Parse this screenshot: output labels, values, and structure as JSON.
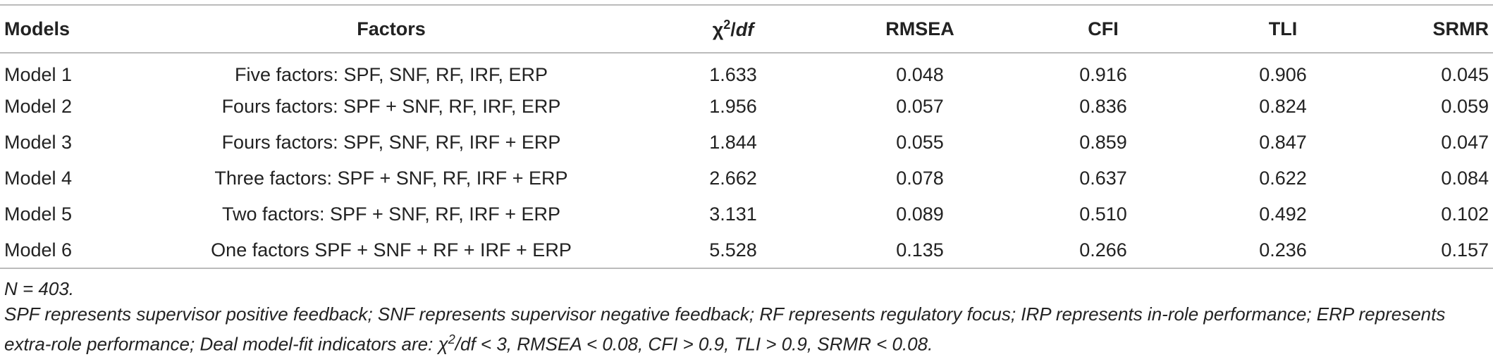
{
  "table": {
    "header": [
      "Models",
      "Factors",
      [
        "χ",
        "2",
        "/",
        "df"
      ],
      "RMSEA",
      "CFI",
      "TLI",
      "SRMR"
    ],
    "rows": [
      [
        "Model 1",
        "Five factors: SPF, SNF, RF, IRF, ERP",
        "1.633",
        "0.048",
        "0.916",
        "0.906",
        "0.045"
      ],
      [
        "Model 2",
        "Fours factors: SPF + SNF, RF, IRF, ERP",
        "1.956",
        "0.057",
        "0.836",
        "0.824",
        "0.059"
      ],
      [
        "Model 3",
        "Fours factors: SPF, SNF, RF, IRF + ERP",
        "1.844",
        "0.055",
        "0.859",
        "0.847",
        "0.047"
      ],
      [
        "Model 4",
        "Three factors: SPF + SNF, RF, IRF + ERP",
        "2.662",
        "0.078",
        "0.637",
        "0.622",
        "0.084"
      ],
      [
        "Model 5",
        "Two factors: SPF + SNF, RF, IRF + ERP",
        "3.131",
        "0.089",
        "0.510",
        "0.492",
        "0.102"
      ],
      [
        "Model 6",
        "One factors SPF + SNF + RF + IRF + ERP",
        "5.528",
        "0.135",
        "0.266",
        "0.236",
        "0.157"
      ]
    ]
  },
  "notes": [
    [
      "N = 403."
    ],
    [
      "SPF represents supervisor positive feedback; SNF represents supervisor negative feedback; RF represents regulatory focus; IRP represents in-role performance; ERP represents extra-role performance; Deal model-fit indicators are: χ",
      "2",
      "/df < 3, RMSEA < 0.08, CFI > 0.9, TLI > 0.9, SRMR < 0.08."
    ]
  ]
}
